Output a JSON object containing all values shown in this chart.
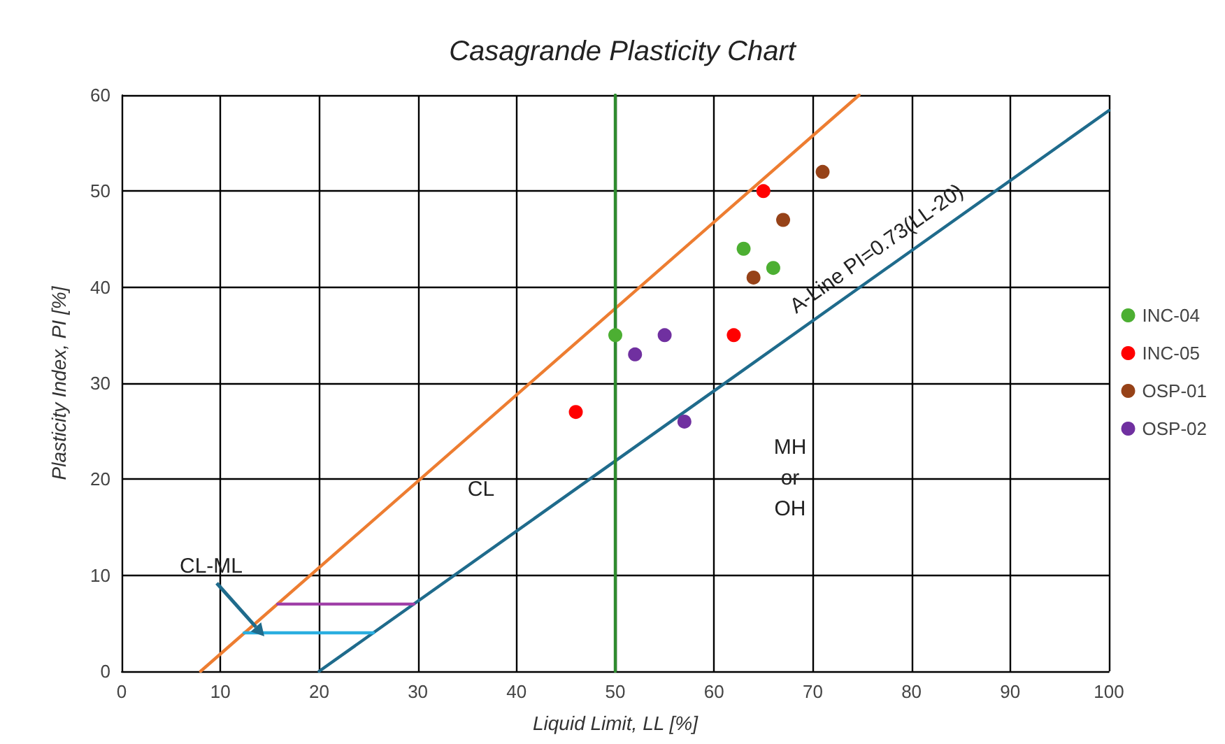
{
  "chart_data": {
    "type": "scatter",
    "title": "Casagrande Plasticity Chart",
    "xlabel": "Liquid Limit, LL [%]",
    "ylabel": "Plasticity Index, PI [%]",
    "xlim": [
      0,
      100
    ],
    "xticks": [
      0,
      10,
      20,
      30,
      40,
      50,
      60,
      70,
      80,
      90,
      100
    ],
    "ylim": [
      0,
      60
    ],
    "yticks": [
      0,
      10,
      20,
      30,
      40,
      50,
      60
    ],
    "grid": true,
    "legend": "right",
    "series": [
      {
        "type": "line",
        "color": "#ed7d31",
        "x": [
          8,
          74.7
        ],
        "values": [
          0,
          60
        ],
        "line_style": "solid",
        "marker": "none"
      },
      {
        "type": "line",
        "color": "#1f6b8c",
        "x": [
          20,
          100
        ],
        "values": [
          0,
          58.4
        ],
        "line_style": "solid",
        "marker": "none"
      },
      {
        "type": "line",
        "color": "#2e8b2e",
        "x": [
          50,
          50
        ],
        "values": [
          0,
          60
        ],
        "line_style": "solid",
        "marker": "none"
      },
      {
        "type": "line",
        "color": "#a040a8",
        "x": [
          15.8,
          29.6
        ],
        "values": [
          7,
          7
        ],
        "line_style": "solid",
        "marker": "none"
      },
      {
        "type": "line",
        "color": "#2aaee0",
        "x": [
          12.4,
          25.5
        ],
        "values": [
          4,
          4
        ],
        "line_style": "solid",
        "marker": "none"
      },
      {
        "name": "INC-04",
        "color": "#4caf32",
        "x": [
          50,
          63,
          66
        ],
        "values": [
          35,
          44,
          42
        ],
        "marker": "circle"
      },
      {
        "name": "INC-05",
        "color": "#ff0000",
        "x": [
          46,
          65,
          62
        ],
        "values": [
          27,
          50,
          35
        ],
        "marker": "circle"
      },
      {
        "name": "OSP-01",
        "color": "#964218",
        "x": [
          71,
          67,
          64
        ],
        "values": [
          52,
          47,
          41
        ],
        "marker": "circle"
      },
      {
        "name": "OSP-02",
        "color": "#7030a0",
        "x": [
          52,
          55,
          57
        ],
        "values": [
          33,
          35,
          26
        ],
        "marker": "circle"
      }
    ],
    "annotations": [
      "CL-ML",
      "CL",
      "MH\nor\nOH",
      "A-Line PI=0.73(LL-20)"
    ]
  }
}
